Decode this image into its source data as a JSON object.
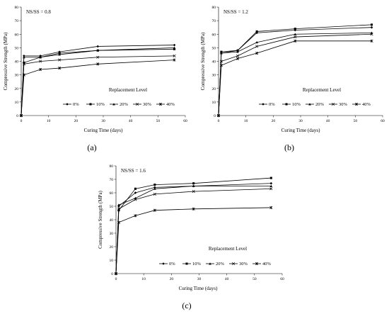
{
  "chart_data": [
    {
      "type": "line",
      "panel_label": "(a)",
      "annotation": "NS/SS = 0.8",
      "xlabel": "Curing Time (days)",
      "ylabel": "Compressive Strength (MPa)",
      "xlim": [
        0,
        60
      ],
      "ylim": [
        0,
        80
      ],
      "xticks": [
        "0",
        "10",
        "20",
        "30",
        "40",
        "50",
        "60"
      ],
      "yticks": [
        "0",
        "10",
        "20",
        "30",
        "40",
        "50",
        "60",
        "70",
        "80"
      ],
      "legend_title": "Replacement Level",
      "legend_position": "bottom",
      "x": [
        0,
        1,
        7,
        14,
        28,
        56
      ],
      "series": [
        {
          "name": "0%",
          "marker": "diamond",
          "values": [
            0,
            44,
            44,
            47,
            51,
            52
          ]
        },
        {
          "name": "10%",
          "marker": "square",
          "values": [
            0,
            39,
            43,
            46,
            48,
            49
          ]
        },
        {
          "name": "20%",
          "marker": "triangle",
          "values": [
            0,
            43,
            43,
            45,
            48,
            50
          ]
        },
        {
          "name": "30%",
          "marker": "x",
          "values": [
            0,
            38,
            40,
            41,
            43,
            44
          ]
        },
        {
          "name": "40%",
          "marker": "star",
          "values": [
            0,
            30,
            34,
            35,
            38,
            41
          ]
        }
      ]
    },
    {
      "type": "line",
      "panel_label": "(b)",
      "annotation": "NS/SS = 1.2",
      "xlabel": "Curing Time (days)",
      "ylabel": "Compressive Strength (MPa)",
      "xlim": [
        0,
        60
      ],
      "ylim": [
        0,
        80
      ],
      "xticks": [
        "0",
        "10",
        "20",
        "30",
        "40",
        "50",
        "60"
      ],
      "yticks": [
        "0",
        "10",
        "20",
        "30",
        "40",
        "50",
        "60",
        "70",
        "80"
      ],
      "legend_title": "Replacement Level",
      "legend_position": "bottom",
      "x": [
        0,
        1,
        7,
        14,
        28,
        56
      ],
      "series": [
        {
          "name": "0%",
          "marker": "diamond",
          "values": [
            0,
            46,
            48,
            61,
            63,
            65
          ]
        },
        {
          "name": "10%",
          "marker": "square",
          "values": [
            0,
            47,
            48,
            62,
            64,
            67
          ]
        },
        {
          "name": "20%",
          "marker": "triangle",
          "values": [
            0,
            46,
            47,
            54,
            60,
            61
          ]
        },
        {
          "name": "30%",
          "marker": "x",
          "values": [
            0,
            40,
            44,
            51,
            58,
            60
          ]
        },
        {
          "name": "40%",
          "marker": "star",
          "values": [
            0,
            37,
            42,
            46,
            55,
            55
          ]
        }
      ]
    },
    {
      "type": "line",
      "panel_label": "(c)",
      "annotation": "NS/SS = 1.6",
      "xlabel": "Curing Time (days)",
      "ylabel": "Compressive Strength (MPa)",
      "xlim": [
        0,
        60
      ],
      "ylim": [
        0,
        80
      ],
      "xticks": [
        "0",
        "10",
        "20",
        "30",
        "40",
        "50",
        "60"
      ],
      "yticks": [
        "0",
        "10",
        "20",
        "30",
        "40",
        "50",
        "60",
        "70",
        "80"
      ],
      "legend_title": "Replacement Level",
      "legend_position": "bottom",
      "x": [
        0,
        1,
        7,
        14,
        28,
        56
      ],
      "series": [
        {
          "name": "0%",
          "marker": "diamond",
          "values": [
            0,
            50,
            60,
            64,
            65,
            67
          ]
        },
        {
          "name": "10%",
          "marker": "square",
          "values": [
            0,
            47,
            63,
            66,
            67,
            71
          ]
        },
        {
          "name": "20%",
          "marker": "triangle",
          "values": [
            0,
            51,
            56,
            63,
            65,
            65
          ]
        },
        {
          "name": "30%",
          "marker": "x",
          "values": [
            0,
            48,
            55,
            59,
            61,
            63
          ]
        },
        {
          "name": "40%",
          "marker": "star",
          "values": [
            0,
            38,
            43,
            47,
            48,
            49
          ]
        }
      ]
    }
  ]
}
